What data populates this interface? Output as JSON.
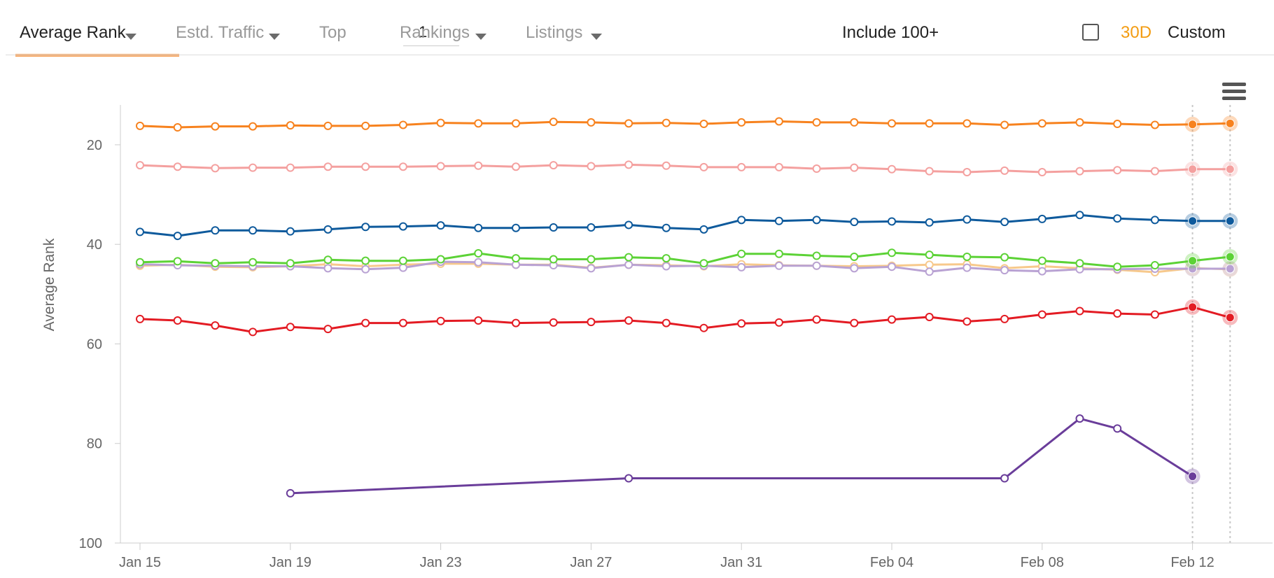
{
  "toolbar": {
    "average_rank": "Average Rank",
    "estd_traffic": "Estd. Traffic",
    "top_label": "Top",
    "top_value": "1",
    "rankings": "Rankings",
    "listings": "Listings",
    "include_100": "Include 100+",
    "range_30d": "30D",
    "range_custom": "Custom"
  },
  "colors": {
    "accent_orange": "#f7a35c",
    "range_active": "#f39c12"
  },
  "icons": {
    "menu": "hamburger-menu-icon",
    "dropdown": "chevron-down-icon",
    "checkbox": "checkbox-icon"
  },
  "chart_data": {
    "type": "line",
    "title": "",
    "xlabel": "",
    "ylabel": "Average Rank",
    "y_axis_reversed": true,
    "ylim": [
      100,
      12
    ],
    "y_ticks": [
      20,
      40,
      60,
      80,
      100
    ],
    "x": [
      "Jan 15",
      "Jan 16",
      "Jan 17",
      "Jan 18",
      "Jan 19",
      "Jan 20",
      "Jan 21",
      "Jan 22",
      "Jan 23",
      "Jan 24",
      "Jan 25",
      "Jan 26",
      "Jan 27",
      "Jan 28",
      "Jan 29",
      "Jan 30",
      "Jan 31",
      "Feb 01",
      "Feb 02",
      "Feb 03",
      "Feb 04",
      "Feb 05",
      "Feb 06",
      "Feb 07",
      "Feb 08",
      "Feb 09",
      "Feb 10",
      "Feb 11",
      "Feb 12",
      "Feb 13"
    ],
    "x_tick_labels": [
      "Jan 15",
      "Jan 19",
      "Jan 23",
      "Jan 27",
      "Jan 31",
      "Feb 04",
      "Feb 08",
      "Feb 12"
    ],
    "x_tick_positions": [
      "Jan 15",
      "Jan 19",
      "Jan 23",
      "Jan 27",
      "Jan 31",
      "Feb 04",
      "Feb 08",
      "Feb 12"
    ],
    "grid": false,
    "crosshairs": [
      "Feb 12",
      "Feb 13"
    ],
    "series": [
      {
        "color": "#f7821e",
        "values": [
          16.2,
          16.5,
          16.3,
          16.3,
          16.1,
          16.2,
          16.2,
          16.0,
          15.6,
          15.7,
          15.7,
          15.4,
          15.5,
          15.7,
          15.6,
          15.8,
          15.5,
          15.3,
          15.5,
          15.5,
          15.7,
          15.7,
          15.7,
          16.0,
          15.7,
          15.5,
          15.8,
          16.0,
          15.9,
          15.7
        ]
      },
      {
        "color": "#f4a09f",
        "values": [
          24.1,
          24.4,
          24.7,
          24.6,
          24.6,
          24.4,
          24.4,
          24.4,
          24.3,
          24.2,
          24.4,
          24.1,
          24.3,
          24.0,
          24.2,
          24.5,
          24.5,
          24.5,
          24.8,
          24.6,
          24.9,
          25.3,
          25.5,
          25.2,
          25.5,
          25.3,
          25.1,
          25.3,
          24.9,
          24.9
        ]
      },
      {
        "color": "#0e5a9c",
        "values": [
          37.5,
          38.3,
          37.2,
          37.2,
          37.4,
          37.0,
          36.5,
          36.4,
          36.2,
          36.7,
          36.7,
          36.6,
          36.6,
          36.1,
          36.7,
          37.0,
          35.1,
          35.3,
          35.1,
          35.5,
          35.4,
          35.6,
          35.0,
          35.5,
          34.9,
          34.1,
          34.8,
          35.1,
          35.3,
          35.3
        ]
      },
      {
        "color": "#f7c98c",
        "values": [
          44.3,
          44.1,
          44.5,
          44.6,
          44.4,
          44.0,
          44.4,
          44.1,
          43.9,
          43.9,
          44.1,
          44.1,
          44.7,
          44.1,
          44.2,
          44.4,
          44.0,
          44.2,
          44.3,
          44.4,
          44.3,
          44.1,
          44.0,
          44.8,
          44.4,
          44.8,
          45.1,
          45.6,
          44.8,
          45.0
        ]
      },
      {
        "color": "#b9a2d3",
        "values": [
          44.0,
          44.2,
          44.3,
          44.4,
          44.4,
          44.8,
          45.0,
          44.7,
          43.5,
          43.6,
          44.1,
          44.2,
          44.8,
          44.1,
          44.4,
          44.3,
          44.6,
          44.3,
          44.3,
          44.8,
          44.5,
          45.5,
          44.7,
          45.2,
          45.4,
          45.0,
          45.0,
          44.9,
          44.9,
          44.9
        ]
      },
      {
        "color": "#5cd236",
        "values": [
          43.6,
          43.4,
          43.8,
          43.6,
          43.8,
          43.1,
          43.3,
          43.3,
          43.0,
          41.8,
          42.8,
          43.0,
          43.0,
          42.6,
          42.8,
          43.8,
          41.9,
          41.9,
          42.3,
          42.5,
          41.7,
          42.1,
          42.5,
          42.6,
          43.3,
          43.8,
          44.5,
          44.2,
          43.3,
          42.5
        ]
      },
      {
        "color": "#e31b23",
        "values": [
          55.0,
          55.3,
          56.3,
          57.6,
          56.6,
          57.0,
          55.8,
          55.8,
          55.4,
          55.3,
          55.8,
          55.7,
          55.6,
          55.3,
          55.8,
          56.8,
          55.9,
          55.7,
          55.1,
          55.8,
          55.1,
          54.6,
          55.5,
          55.0,
          54.1,
          53.4,
          53.9,
          54.1,
          52.6,
          54.7
        ]
      },
      {
        "color": "#6a3d9a",
        "values": [
          null,
          null,
          null,
          null,
          90.0,
          null,
          null,
          null,
          null,
          null,
          null,
          null,
          null,
          87.0,
          null,
          null,
          null,
          null,
          null,
          null,
          null,
          null,
          null,
          87.0,
          null,
          75.0,
          77.0,
          null,
          86.6,
          null
        ]
      }
    ]
  }
}
